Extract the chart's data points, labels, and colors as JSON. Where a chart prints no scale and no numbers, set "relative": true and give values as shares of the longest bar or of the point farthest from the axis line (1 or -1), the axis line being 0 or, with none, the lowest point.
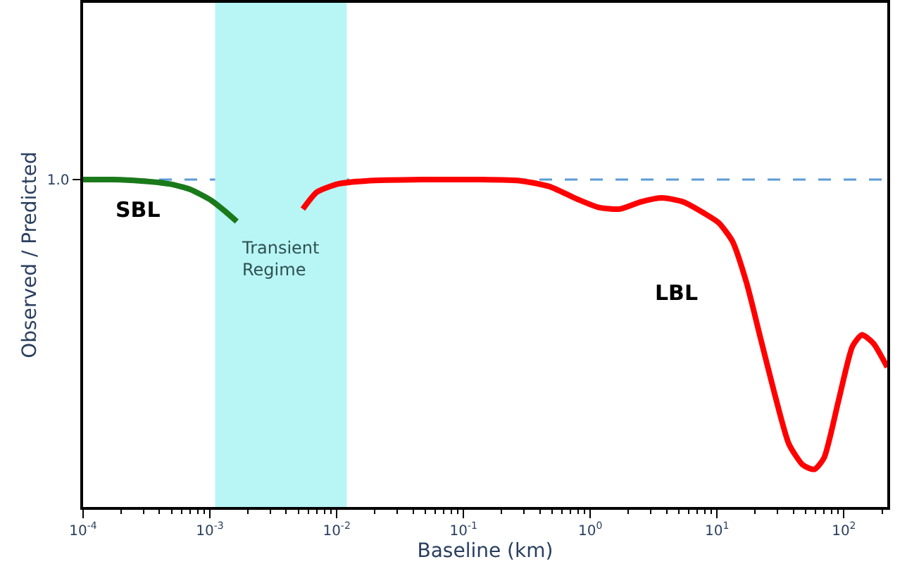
{
  "chart_data": {
    "type": "line",
    "relative": true,
    "xlabel": "Baseline (km)",
    "ylabel": "Observed / Predicted",
    "log": "x",
    "xlim": [
      0.0001,
      220
    ],
    "xticks": [
      {
        "value": 0.0001,
        "label": "10$^{-4}$"
      },
      {
        "value": 0.001,
        "label": "10$^{-3}$"
      },
      {
        "value": 0.01,
        "label": "10$^{-2}$"
      },
      {
        "value": 0.1,
        "label": "10$^{-1}$"
      },
      {
        "value": 1,
        "label": "10$^{0}$"
      },
      {
        "value": 10,
        "label": "10$^{1}$"
      },
      {
        "value": 100,
        "label": "10$^{2}$"
      }
    ],
    "grid": false,
    "series": [
      {
        "name": "SBL",
        "color": "#1a7a1a",
        "x": [
          0.0001,
          0.000171,
          0.000286,
          0.000477,
          0.0007,
          0.00103,
          0.00133,
          0.00163
        ],
        "values": [
          1.0,
          1.0,
          0.996,
          0.987,
          0.97,
          0.936,
          0.902,
          0.872
        ]
      },
      {
        "name": "LBL",
        "color": "#ff0000",
        "x": [
          0.00541,
          0.00698,
          0.0103,
          0.0171,
          0.0476,
          0.132,
          0.286,
          0.476,
          0.794,
          1.17,
          1.71,
          2.51,
          3.69,
          5.41,
          7.94,
          10.3,
          13.2,
          17.1,
          22.1,
          28.6,
          36.9,
          47.6,
          58.5,
          69.8,
          90.3,
          117,
          139,
          171,
          220
        ],
        "values": [
          0.91,
          0.962,
          0.987,
          0.996,
          1.0,
          1.0,
          0.996,
          0.979,
          0.94,
          0.915,
          0.91,
          0.932,
          0.944,
          0.932,
          0.897,
          0.868,
          0.812,
          0.684,
          0.513,
          0.342,
          0.192,
          0.128,
          0.115,
          0.15,
          0.321,
          0.491,
          0.526,
          0.5,
          0.427
        ]
      }
    ],
    "ref_lines": [
      {
        "axis": "y",
        "value": 1.0,
        "label": "1.0",
        "color": "#5b9bd5",
        "line_style": "dashed"
      }
    ],
    "bands": [
      {
        "axis": "x",
        "from": 0.0011,
        "to": 0.012,
        "label": "Transient\nRegime",
        "color": "#b8f5f5"
      }
    ]
  }
}
